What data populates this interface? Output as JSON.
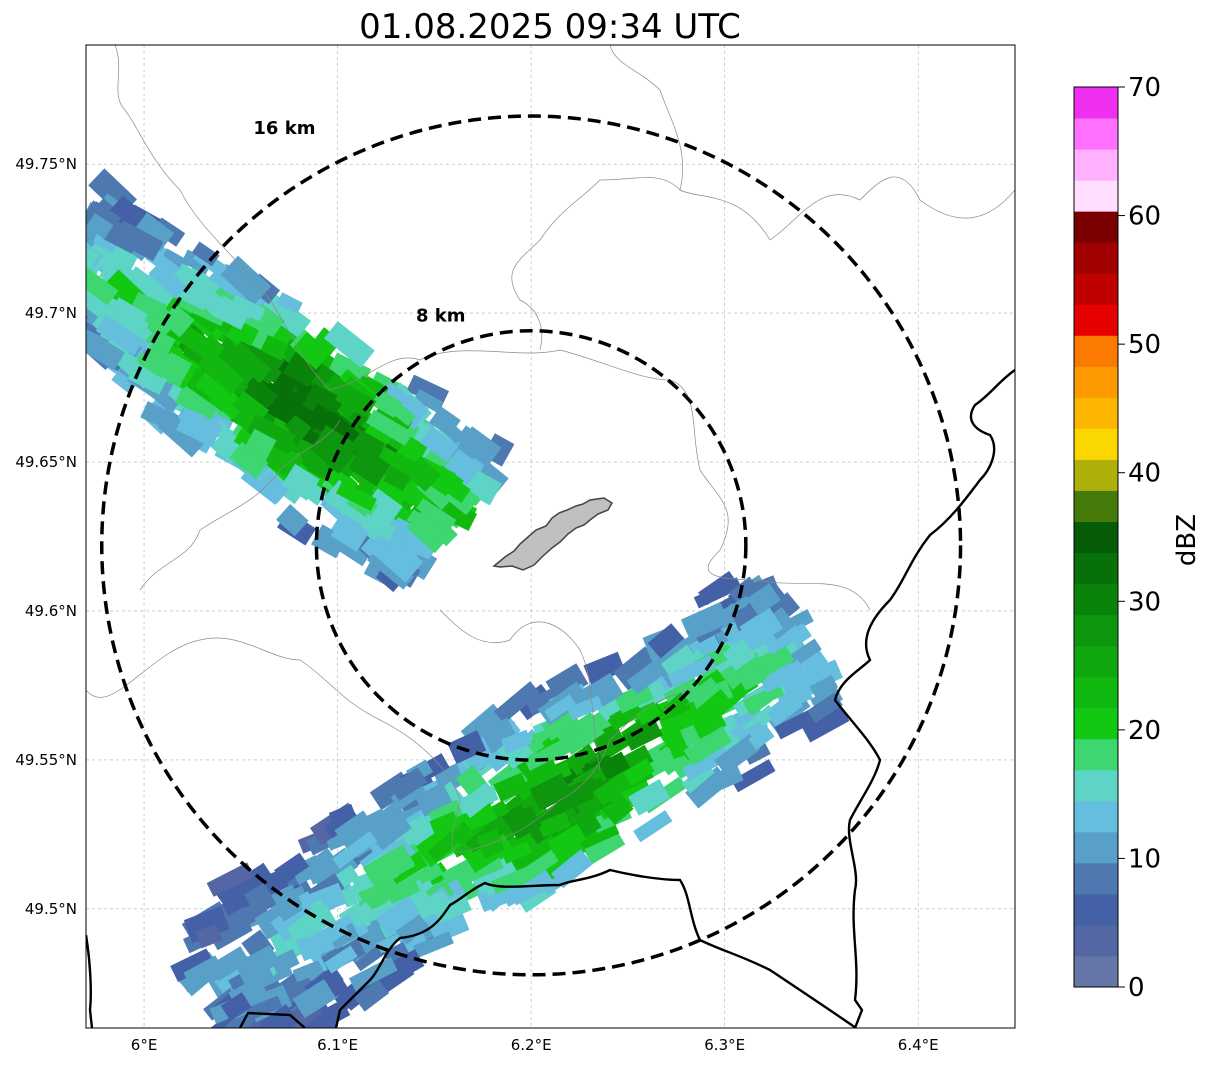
{
  "title": "01.08.2025 09:34 UTC",
  "map": {
    "lon_range": [
      5.97,
      6.45
    ],
    "lat_range": [
      49.46,
      49.79
    ],
    "lon_ticks": [
      {
        "value": 6.0,
        "label": "6°E"
      },
      {
        "value": 6.1,
        "label": "6.1°E"
      },
      {
        "value": 6.2,
        "label": "6.2°E"
      },
      {
        "value": 6.3,
        "label": "6.3°E"
      },
      {
        "value": 6.4,
        "label": "6.4°E"
      }
    ],
    "lat_ticks": [
      {
        "value": 49.75,
        "label": "49.75°N"
      },
      {
        "value": 49.7,
        "label": "49.7°N"
      },
      {
        "value": 49.65,
        "label": "49.65°N"
      },
      {
        "value": 49.6,
        "label": "49.6°N"
      },
      {
        "value": 49.55,
        "label": "49.55°N"
      },
      {
        "value": 49.5,
        "label": "49.5°N"
      }
    ],
    "grid": true,
    "center": {
      "lon": 6.2,
      "lat": 49.622
    },
    "range_rings": [
      {
        "radius_km": 8,
        "label": "8 km"
      },
      {
        "radius_km": 16,
        "label": "16 km"
      }
    ]
  },
  "colorbar": {
    "label": "dBZ",
    "min": 0,
    "max": 70,
    "step": 2.5,
    "tick_labels": [
      "0",
      "10",
      "20",
      "30",
      "40",
      "50",
      "60",
      "70"
    ],
    "colors": [
      "#6477a8",
      "#5466a3",
      "#4460a6",
      "#4d78b0",
      "#58a0c8",
      "#66bede",
      "#5ed4c6",
      "#3dd670",
      "#13c813",
      "#10b810",
      "#0fa80f",
      "#0e960e",
      "#0a830a",
      "#087008",
      "#065c06",
      "#467a0a",
      "#adb00a",
      "#fad700",
      "#fcb600",
      "#fc9a00",
      "#fc7a00",
      "#e60000",
      "#c00000",
      "#a00000",
      "#7a0000",
      "#ffdeff",
      "#ffb0ff",
      "#ff70ff",
      "#f030f0"
    ]
  },
  "echo_bands": [
    {
      "name": "north-west-band",
      "start": [
        5.96,
        49.72
      ],
      "end": [
        6.16,
        49.63
      ],
      "peak": [
        6.09,
        49.675
      ]
    },
    {
      "name": "south-band",
      "start": [
        6.03,
        49.47
      ],
      "end": [
        6.34,
        49.59
      ],
      "peak": [
        6.24,
        49.52
      ]
    }
  ],
  "airport_name": ""
}
